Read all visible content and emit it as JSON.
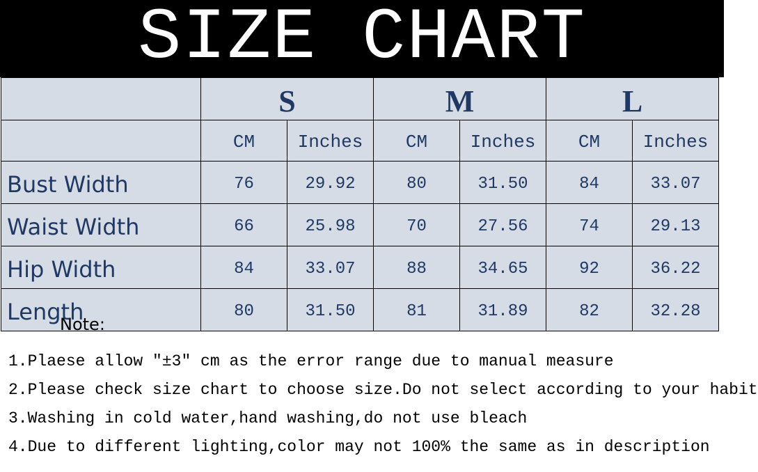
{
  "title": "SIZE CHART",
  "sizes": [
    "S",
    "M",
    "L"
  ],
  "units": [
    "CM",
    "Inches"
  ],
  "rows": [
    {
      "label": "Bust Width",
      "values": [
        "76",
        "29.92",
        "80",
        "31.50",
        "84",
        "33.07"
      ]
    },
    {
      "label": "Waist Width",
      "values": [
        "66",
        "25.98",
        "70",
        "27.56",
        "74",
        "29.13"
      ]
    },
    {
      "label": "Hip Width",
      "values": [
        "84",
        "33.07",
        "88",
        "34.65",
        "92",
        "36.22"
      ]
    },
    {
      "label": "Length",
      "values": [
        "80",
        "31.50",
        "81",
        "31.89",
        "82",
        "32.28"
      ]
    }
  ],
  "note_title": "Note:",
  "notes": [
    "1.Plaese allow ″±3″ cm as the error range due to manual measure",
    "2.Please check size chart to choose size.Do not select according to your habit",
    "3.Washing in cold water,hand washing,do not use bleach",
    "4.Due to different lighting,color may not 100% the same as in description"
  ],
  "colors": {
    "header_bg": "#000000",
    "table_bg": "#d6dce5",
    "text": "#1f3864"
  }
}
